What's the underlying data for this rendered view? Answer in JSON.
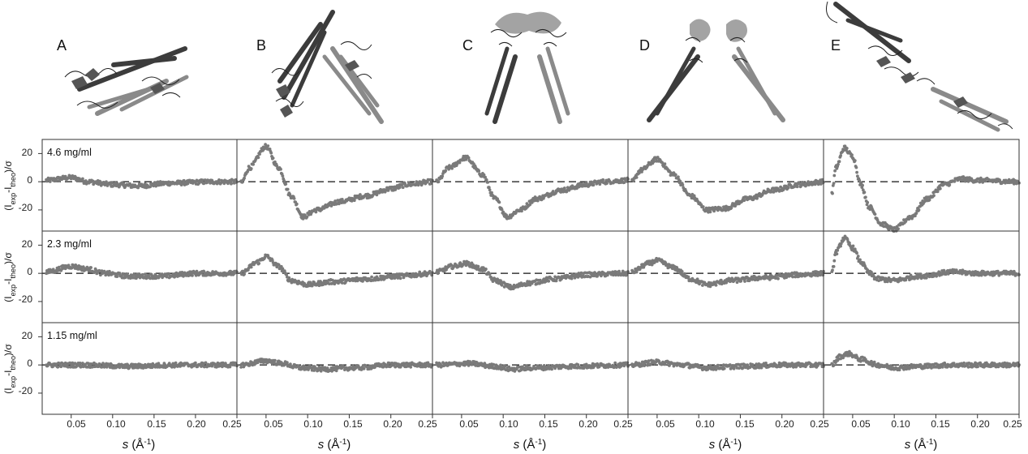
{
  "panels": [
    {
      "letter": "A"
    },
    {
      "letter": "B"
    },
    {
      "letter": "C"
    },
    {
      "letter": "D"
    },
    {
      "letter": "E"
    }
  ],
  "colors": {
    "points": "#7a7a7a",
    "helix_dark": "#3c3c3c",
    "helix_light": "#8a8a8a",
    "frame": "#333333",
    "zero_line": "#111111"
  },
  "chart_data": {
    "type": "scatter",
    "ylabel": "(Iexp-Itheo)/σ",
    "ylabel_parts": {
      "open": "(I",
      "sub1": "exp",
      "mid": "-I",
      "sub2": "theo",
      "close": ")/σ"
    },
    "xlabel": "s (Å⁻¹)",
    "xlabel_parts": {
      "s": "s",
      "rest": " (Å",
      "sup": "-1",
      "close": ")"
    },
    "xlim": [
      0.015,
      0.25
    ],
    "ylim": [
      -35,
      30
    ],
    "x_ticks": [
      0.05,
      0.1,
      0.15,
      0.2,
      0.25
    ],
    "x_tick_labels": [
      "0.05",
      "0.10",
      "0.15",
      "0.20",
      "0.25"
    ],
    "y_ticks": [
      20,
      0,
      -20
    ],
    "y_tick_labels": [
      "20",
      "0",
      "-20"
    ],
    "zero_line": "dashed",
    "rows": [
      {
        "concentration": "4.6 mg/ml"
      },
      {
        "concentration": "2.3 mg/ml"
      },
      {
        "concentration": "1.15 mg/ml"
      }
    ],
    "columns": [
      "A",
      "B",
      "C",
      "D",
      "E"
    ],
    "profiles": [
      [
        [
          [
            0.02,
            1
          ],
          [
            0.05,
            3
          ],
          [
            0.07,
            0
          ],
          [
            0.1,
            -2
          ],
          [
            0.13,
            -3
          ],
          [
            0.17,
            -1
          ],
          [
            0.22,
            0
          ],
          [
            0.25,
            0
          ]
        ],
        [
          [
            0.02,
            -1
          ],
          [
            0.03,
            10
          ],
          [
            0.05,
            25
          ],
          [
            0.065,
            10
          ],
          [
            0.08,
            -10
          ],
          [
            0.095,
            -25
          ],
          [
            0.11,
            -20
          ],
          [
            0.14,
            -14
          ],
          [
            0.17,
            -10
          ],
          [
            0.2,
            -5
          ],
          [
            0.22,
            -2
          ],
          [
            0.25,
            0
          ]
        ],
        [
          [
            0.02,
            0
          ],
          [
            0.035,
            10
          ],
          [
            0.055,
            17
          ],
          [
            0.075,
            5
          ],
          [
            0.09,
            -12
          ],
          [
            0.105,
            -25
          ],
          [
            0.12,
            -20
          ],
          [
            0.14,
            -12
          ],
          [
            0.17,
            -6
          ],
          [
            0.2,
            -2
          ],
          [
            0.22,
            0
          ],
          [
            0.25,
            1
          ]
        ],
        [
          [
            0.02,
            0
          ],
          [
            0.03,
            8
          ],
          [
            0.05,
            16
          ],
          [
            0.07,
            5
          ],
          [
            0.09,
            -10
          ],
          [
            0.11,
            -20
          ],
          [
            0.13,
            -19
          ],
          [
            0.16,
            -12
          ],
          [
            0.19,
            -6
          ],
          [
            0.22,
            -2
          ],
          [
            0.25,
            0
          ]
        ],
        [
          [
            0.025,
            -8
          ],
          [
            0.03,
            10
          ],
          [
            0.04,
            24
          ],
          [
            0.05,
            18
          ],
          [
            0.06,
            -2
          ],
          [
            0.07,
            -18
          ],
          [
            0.085,
            -30
          ],
          [
            0.1,
            -34
          ],
          [
            0.12,
            -25
          ],
          [
            0.14,
            -12
          ],
          [
            0.16,
            -2
          ],
          [
            0.18,
            2
          ],
          [
            0.2,
            1
          ],
          [
            0.25,
            0
          ]
        ]
      ],
      [
        [
          [
            0.02,
            1
          ],
          [
            0.05,
            5
          ],
          [
            0.07,
            3
          ],
          [
            0.09,
            0
          ],
          [
            0.12,
            -2
          ],
          [
            0.16,
            -2
          ],
          [
            0.2,
            0
          ],
          [
            0.25,
            0
          ]
        ],
        [
          [
            0.02,
            0
          ],
          [
            0.04,
            8
          ],
          [
            0.05,
            12
          ],
          [
            0.065,
            5
          ],
          [
            0.08,
            -5
          ],
          [
            0.1,
            -8
          ],
          [
            0.13,
            -6
          ],
          [
            0.17,
            -4
          ],
          [
            0.21,
            -2
          ],
          [
            0.25,
            0
          ]
        ],
        [
          [
            0.02,
            1
          ],
          [
            0.04,
            5
          ],
          [
            0.055,
            7
          ],
          [
            0.075,
            3
          ],
          [
            0.09,
            -5
          ],
          [
            0.11,
            -10
          ],
          [
            0.13,
            -7
          ],
          [
            0.16,
            -4
          ],
          [
            0.2,
            -1
          ],
          [
            0.25,
            0
          ]
        ],
        [
          [
            0.02,
            1
          ],
          [
            0.04,
            7
          ],
          [
            0.05,
            9
          ],
          [
            0.07,
            4
          ],
          [
            0.09,
            -4
          ],
          [
            0.11,
            -8
          ],
          [
            0.14,
            -5
          ],
          [
            0.18,
            -3
          ],
          [
            0.22,
            -1
          ],
          [
            0.25,
            0
          ]
        ],
        [
          [
            0.025,
            0
          ],
          [
            0.03,
            15
          ],
          [
            0.04,
            25
          ],
          [
            0.05,
            18
          ],
          [
            0.06,
            8
          ],
          [
            0.07,
            0
          ],
          [
            0.08,
            -4
          ],
          [
            0.1,
            -5
          ],
          [
            0.13,
            -2
          ],
          [
            0.17,
            1
          ],
          [
            0.2,
            0
          ],
          [
            0.25,
            0
          ]
        ]
      ],
      [
        [
          [
            0.02,
            0
          ],
          [
            0.06,
            0
          ],
          [
            0.12,
            -1
          ],
          [
            0.18,
            0
          ],
          [
            0.25,
            0
          ]
        ],
        [
          [
            0.02,
            0
          ],
          [
            0.05,
            3
          ],
          [
            0.07,
            1
          ],
          [
            0.09,
            -2
          ],
          [
            0.12,
            -3
          ],
          [
            0.16,
            -2
          ],
          [
            0.2,
            0
          ],
          [
            0.25,
            0
          ]
        ],
        [
          [
            0.02,
            0
          ],
          [
            0.06,
            1
          ],
          [
            0.09,
            -1
          ],
          [
            0.11,
            -3
          ],
          [
            0.14,
            -2
          ],
          [
            0.18,
            -1
          ],
          [
            0.25,
            0
          ]
        ],
        [
          [
            0.02,
            0
          ],
          [
            0.05,
            2
          ],
          [
            0.08,
            0
          ],
          [
            0.11,
            -2
          ],
          [
            0.15,
            -1
          ],
          [
            0.2,
            0
          ],
          [
            0.25,
            0
          ]
        ],
        [
          [
            0.025,
            0
          ],
          [
            0.035,
            6
          ],
          [
            0.045,
            8
          ],
          [
            0.06,
            4
          ],
          [
            0.08,
            0
          ],
          [
            0.1,
            -2
          ],
          [
            0.13,
            -1
          ],
          [
            0.17,
            0
          ],
          [
            0.25,
            0
          ]
        ]
      ]
    ]
  }
}
